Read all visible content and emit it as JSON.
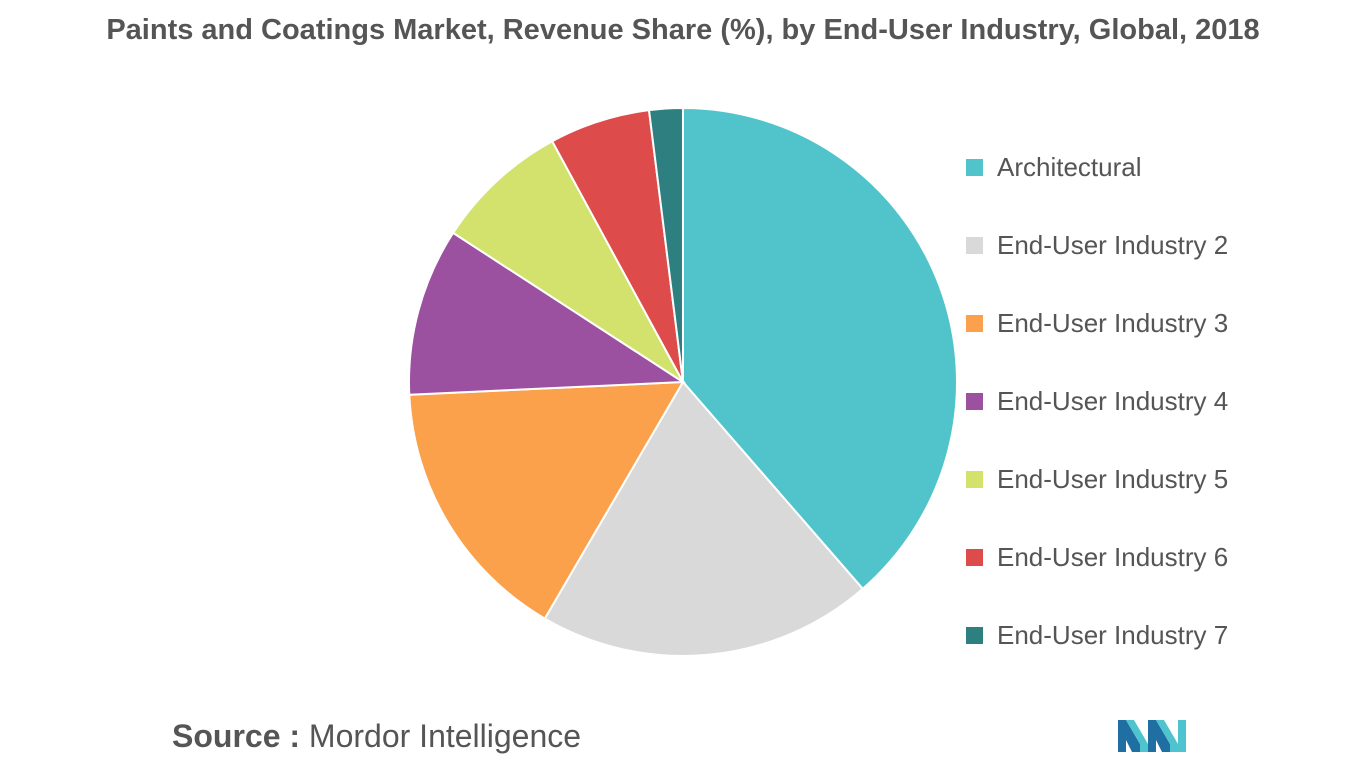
{
  "chart_data": {
    "type": "pie",
    "title": "Paints and Coatings Market, Revenue Share (%), by End-User Industry, Global, 2018",
    "categories": [
      "Architectural",
      "End-User Industry 2",
      "End-User Industry 3",
      "End-User Industry 4",
      "End-User Industry 5",
      "End-User Industry 6",
      "End-User Industry 7"
    ],
    "values": [
      39,
      20,
      16,
      10,
      8,
      6,
      2
    ],
    "colors": [
      "#50C4CA",
      "#D9D9D9",
      "#FBA04B",
      "#9B51A0",
      "#D3E26C",
      "#DE4B4B",
      "#2E8080"
    ],
    "legend_position": "right"
  },
  "source": {
    "label": "Source :",
    "text": "Mordor Intelligence"
  },
  "logo": {
    "icon": "mordor-intelligence-logo",
    "colors": [
      "#1F6FA3",
      "#4FC4CF"
    ]
  }
}
